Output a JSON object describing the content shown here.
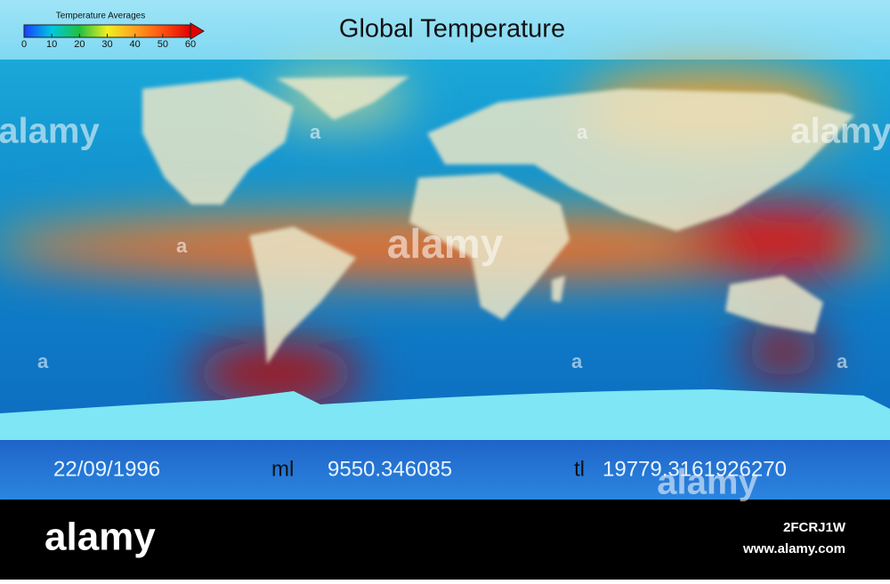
{
  "header": {
    "title": "Global Temperature"
  },
  "legend": {
    "title": "Temperature Averages",
    "range": [
      0,
      60
    ],
    "ticks": [
      0,
      10,
      20,
      30,
      40,
      50,
      60
    ],
    "colors": [
      "#1a3cff",
      "#00c8e0",
      "#20c040",
      "#f0f020",
      "#ffa020",
      "#ff5010",
      "#e00000"
    ]
  },
  "status": {
    "date": "22/09/1996",
    "ml_label": "ml",
    "ml_value": "9550.346085",
    "tl_label": "tl",
    "tl_value": "19779.3161926270"
  },
  "watermark": {
    "brand": "alamy",
    "id": "2FCRJ1W",
    "url": "www.alamy.com",
    "mark": "a"
  }
}
